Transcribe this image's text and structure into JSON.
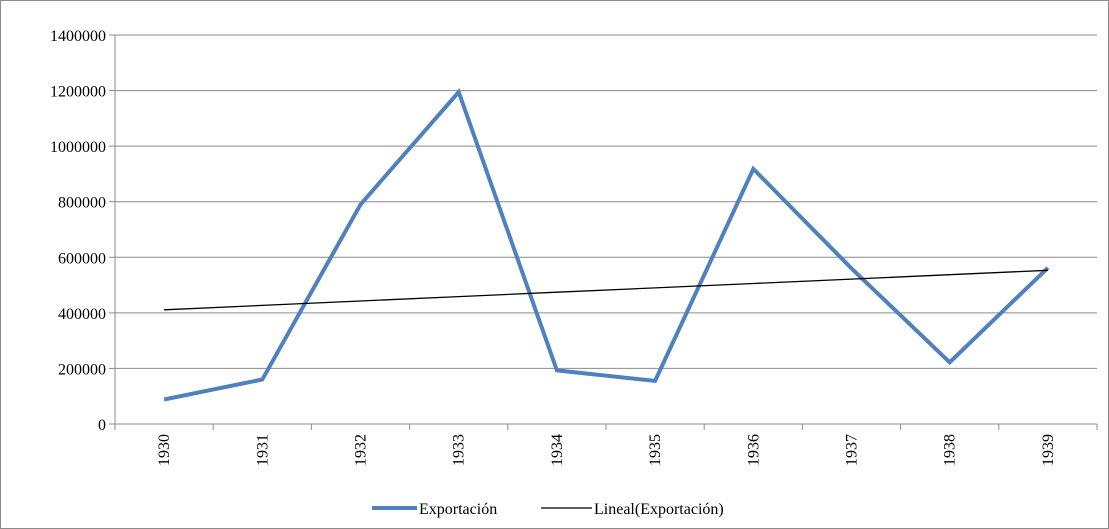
{
  "chart_data": {
    "type": "line",
    "title": "",
    "xlabel": "",
    "ylabel": "",
    "x": [
      "1930",
      "1931",
      "1932",
      "1933",
      "1934",
      "1935",
      "1936",
      "1937",
      "1938",
      "1939"
    ],
    "ylim": [
      0,
      1400000
    ],
    "yticks": [
      "0",
      "200000",
      "400000",
      "600000",
      "800000",
      "1000000",
      "1200000",
      "1400000"
    ],
    "grid": true,
    "legend_position": "bottom",
    "series": [
      {
        "name": "Exportación",
        "values": [
          88000,
          160000,
          790000,
          1195000,
          193000,
          155000,
          918000,
          560000,
          222000,
          562000
        ],
        "color": "#4f81bd"
      },
      {
        "name": "Lineal(Exportación)",
        "values": [
          411000,
          426800,
          442600,
          458400,
          474200,
          490000,
          505800,
          521600,
          537400,
          553200
        ],
        "color": "#000000"
      }
    ]
  }
}
